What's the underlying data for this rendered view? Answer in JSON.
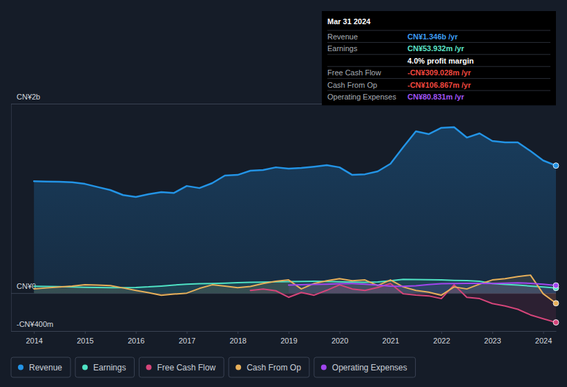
{
  "chart_data": {
    "type": "line",
    "xlim": [
      2013.55,
      2024.25
    ],
    "xticks": [
      2014,
      2015,
      2016,
      2017,
      2018,
      2019,
      2020,
      2021,
      2022,
      2023,
      2024
    ],
    "ylim": [
      -400,
      2000
    ],
    "yticks": [
      {
        "value": -400,
        "label": "-CN¥400m"
      },
      {
        "value": 0,
        "label": "CN¥0"
      },
      {
        "value": 2000,
        "label": "CN¥2b"
      }
    ],
    "grid": true,
    "legend": "bottom-left",
    "x": [
      2014,
      2014.25,
      2014.5,
      2014.75,
      2015,
      2015.25,
      2015.5,
      2015.75,
      2016,
      2016.25,
      2016.5,
      2016.75,
      2017,
      2017.25,
      2017.5,
      2017.75,
      2018,
      2018.25,
      2018.5,
      2018.75,
      2019,
      2019.25,
      2019.5,
      2019.75,
      2020,
      2020.25,
      2020.5,
      2020.75,
      2021,
      2021.25,
      2021.5,
      2021.75,
      2022,
      2022.25,
      2022.5,
      2022.75,
      2023,
      2023.25,
      2023.5,
      2023.75,
      2024,
      2024.25
    ],
    "series": [
      {
        "name": "Revenue",
        "color": "#2394e6",
        "values": [
          1182,
          1178,
          1176,
          1170,
          1153,
          1120,
          1088,
          1035,
          1015,
          1044,
          1066,
          1058,
          1131,
          1109,
          1161,
          1241,
          1248,
          1292,
          1299,
          1328,
          1314,
          1321,
          1335,
          1350,
          1328,
          1248,
          1255,
          1285,
          1365,
          1540,
          1708,
          1679,
          1745,
          1752,
          1642,
          1686,
          1606,
          1591,
          1591,
          1500,
          1400,
          1346
        ]
      },
      {
        "name": "Earnings",
        "color": "#4fe3c5",
        "values": [
          73,
          70,
          68,
          65,
          62,
          60,
          58,
          58,
          60,
          66,
          75,
          85,
          95,
          100,
          102,
          105,
          110,
          115,
          117,
          120,
          122,
          124,
          125,
          124,
          120,
          117,
          115,
          118,
          130,
          146,
          144,
          142,
          139,
          135,
          132,
          125,
          102,
          92,
          85,
          75,
          65,
          53.932
        ]
      },
      {
        "name": "Free Cash Flow",
        "color": "#d6457a",
        "values": [
          null,
          null,
          null,
          null,
          null,
          null,
          null,
          null,
          null,
          null,
          null,
          null,
          null,
          null,
          null,
          null,
          null,
          29,
          44,
          25,
          -44,
          7,
          -22,
          30,
          88,
          44,
          29,
          60,
          102,
          -7,
          -20,
          -29,
          -58,
          88,
          -44,
          -58,
          -110,
          -135,
          -170,
          -230,
          -270,
          -309.028
        ]
      },
      {
        "name": "Cash From Op",
        "color": "#e8b05a",
        "values": [
          45,
          55,
          65,
          75,
          88,
          85,
          80,
          55,
          29,
          5,
          -22,
          -10,
          0,
          50,
          88,
          75,
          58,
          70,
          102,
          125,
          139,
          44,
          102,
          130,
          153,
          131,
          139,
          80,
          139,
          66,
          29,
          10,
          -22,
          66,
          44,
          95,
          139,
          153,
          175,
          190,
          -7,
          -106.867
        ]
      },
      {
        "name": "Operating Expenses",
        "color": "#a146f0",
        "values": [
          null,
          null,
          null,
          null,
          null,
          null,
          null,
          null,
          null,
          null,
          null,
          null,
          null,
          null,
          null,
          null,
          null,
          null,
          null,
          null,
          85,
          88,
          92,
          95,
          100,
          102,
          95,
          85,
          75,
          73,
          78,
          90,
          100,
          102,
          104,
          103,
          102,
          105,
          108,
          104,
          95,
          80.831
        ]
      }
    ],
    "annotation": {
      "title": "Mar 31 2024",
      "rows": [
        {
          "label": "Revenue",
          "value": "CN¥1.346b /yr",
          "color": "#3d9df3"
        },
        {
          "label": "Earnings",
          "value": "CN¥53.932m /yr",
          "color": "#5ce5c9"
        },
        {
          "value": "4.0% profit margin",
          "color": "#ffffff"
        },
        {
          "label": "Free Cash Flow",
          "value": "-CN¥309.028m /yr",
          "color": "#f0473f"
        },
        {
          "label": "Cash From Op",
          "value": "-CN¥106.867m /yr",
          "color": "#f0473f"
        },
        {
          "label": "Operating Expenses",
          "value": "CN¥80.831m /yr",
          "color": "#a155f5"
        }
      ]
    }
  }
}
